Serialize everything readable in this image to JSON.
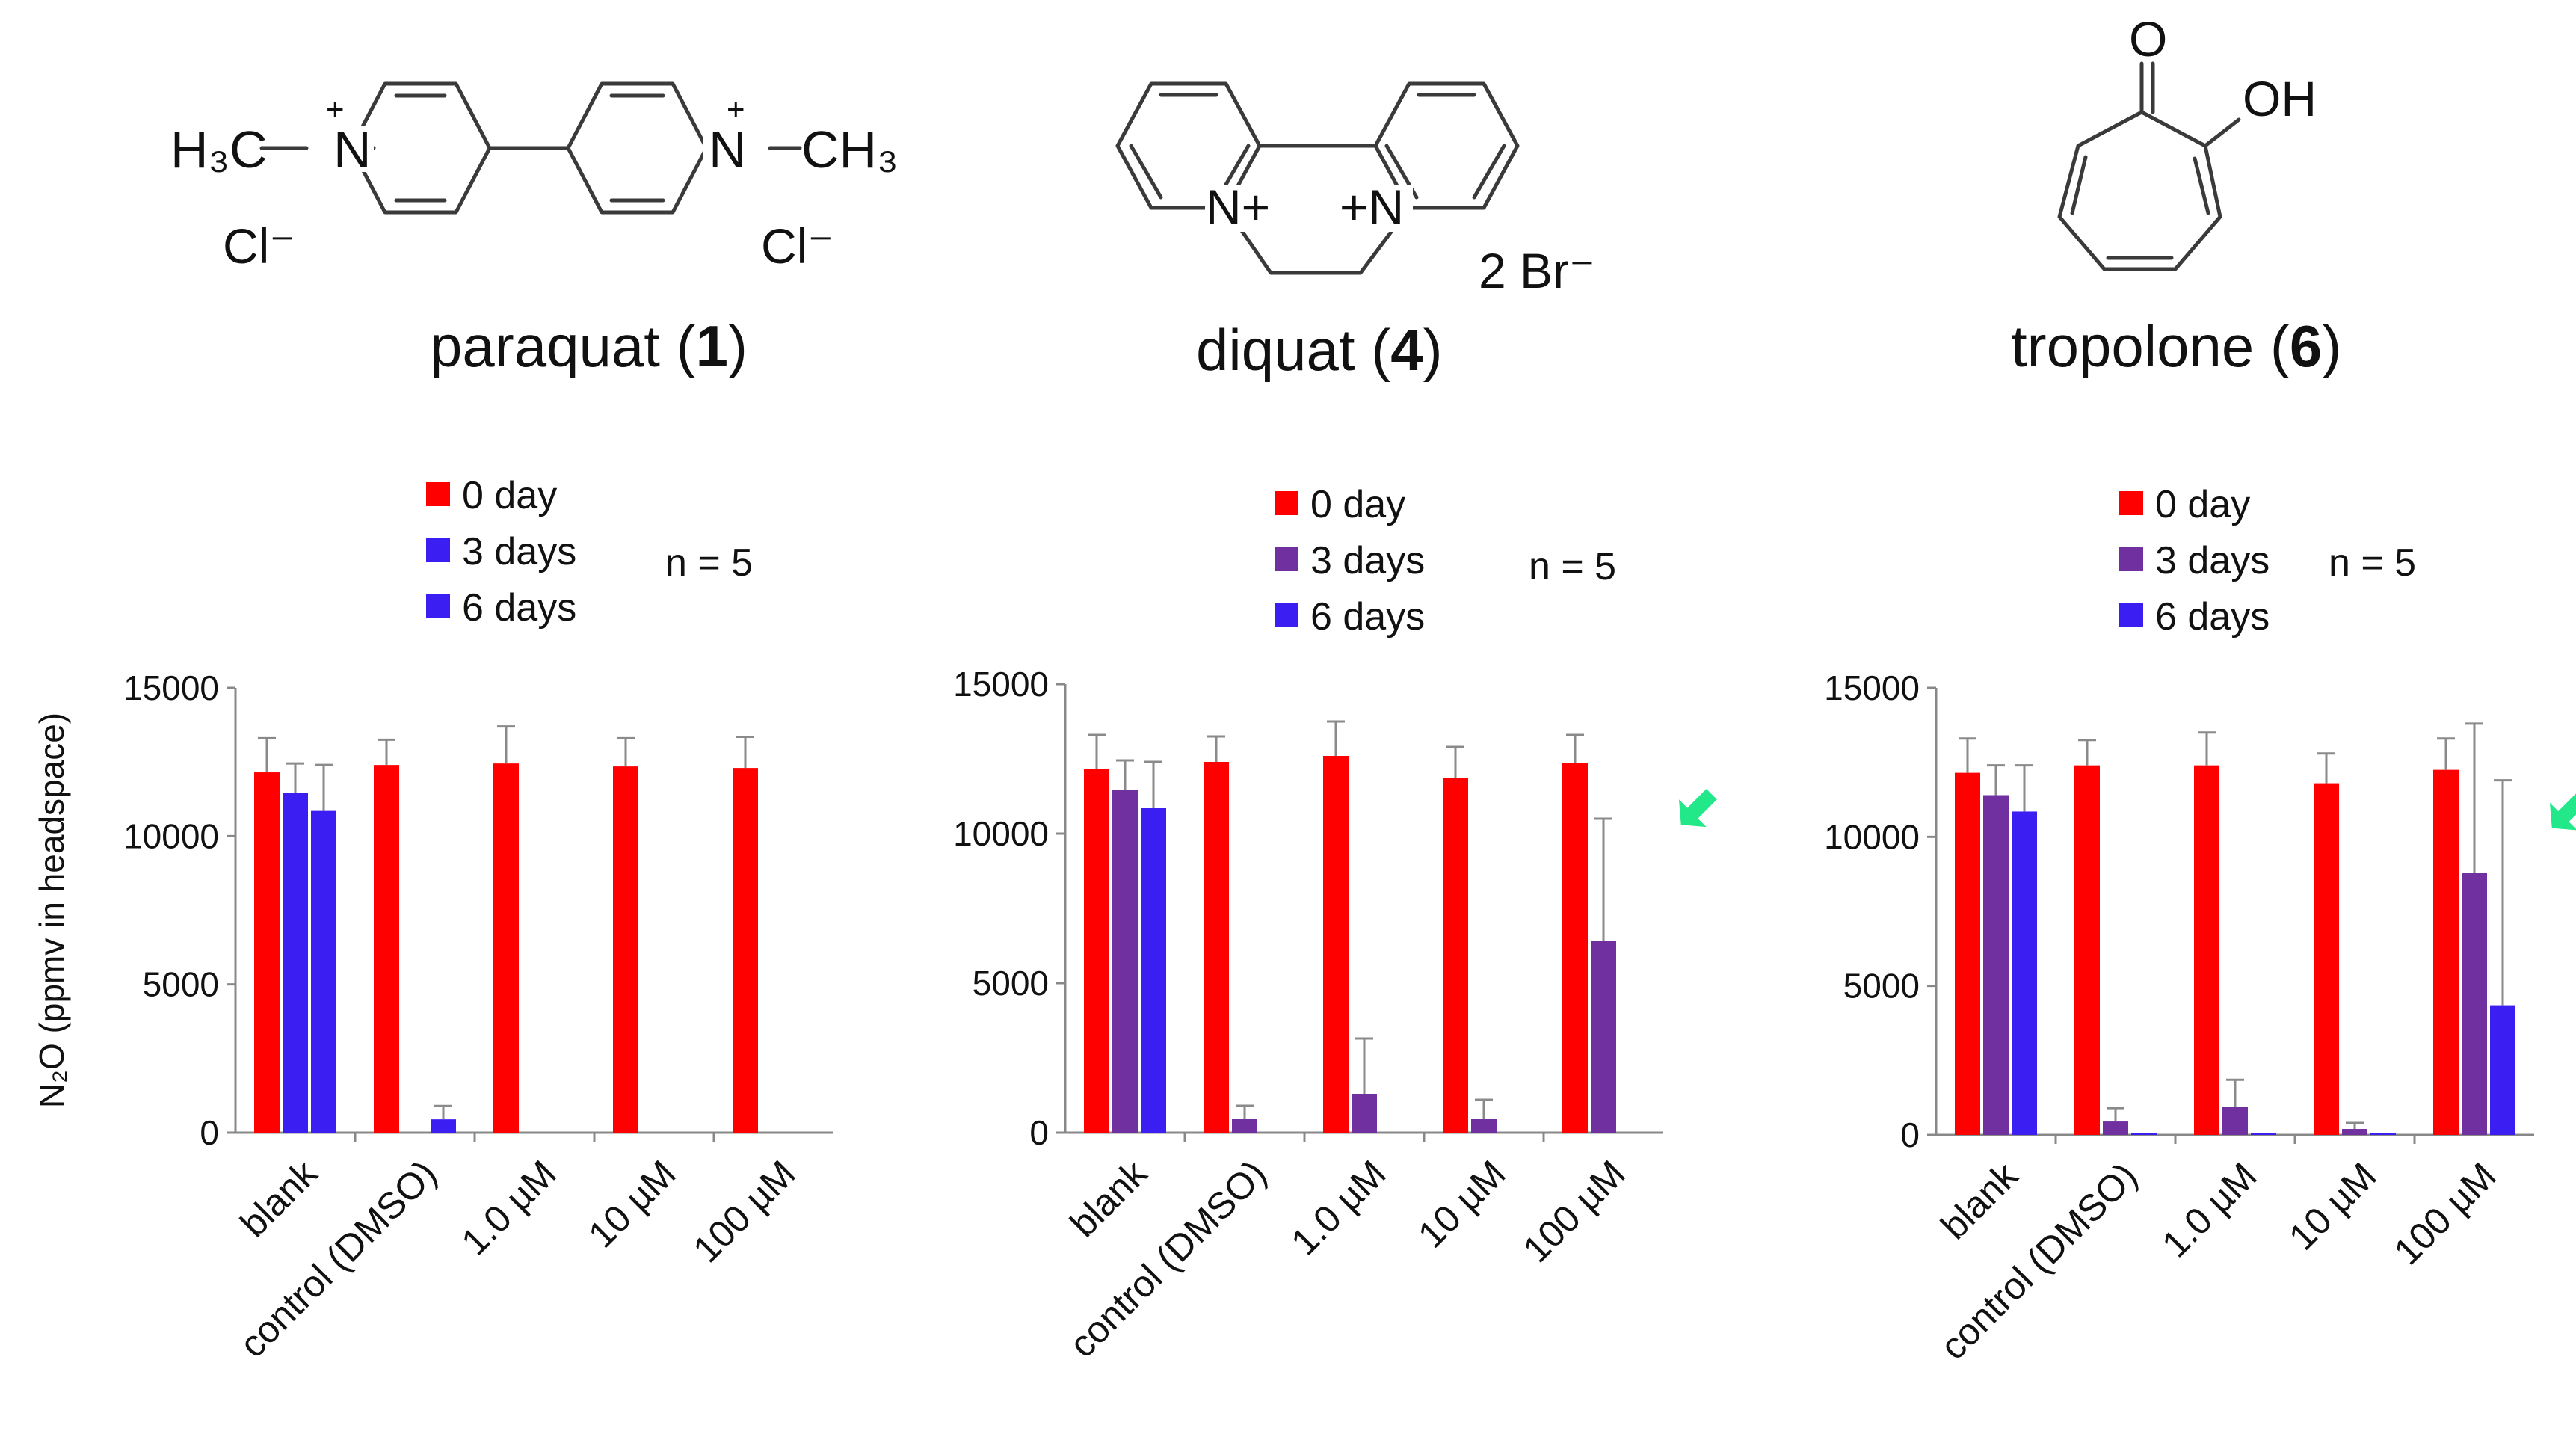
{
  "compounds": [
    {
      "name": "paraquat",
      "number": "1",
      "labels": {
        "left_methyl": "H₃C",
        "right_methyl": "CH₃",
        "n": "N",
        "plus": "+",
        "counter1": "Cl⁻",
        "counter2": "Cl⁻"
      }
    },
    {
      "name": "diquat",
      "number": "4",
      "labels": {
        "n_left": "N+",
        "n_right": "+N",
        "counter": "2 Br⁻"
      }
    },
    {
      "name": "tropolone",
      "number": "6",
      "labels": {
        "carbonyl_o": "O",
        "hydroxyl": "OH"
      }
    }
  ],
  "chart_data": [
    {
      "type": "bar",
      "title": "paraquat (1)",
      "ylabel": "N₂O (ppmv in headspace)",
      "ylim": [
        0,
        15000
      ],
      "yticks": [
        "0",
        "5000",
        "10000",
        "15000"
      ],
      "categories": [
        "blank",
        "control (DMSO)",
        "1.0 µM",
        "10 µM",
        "100 µM"
      ],
      "n_label": "n = 5",
      "legend": [
        "0 day",
        "3 days",
        "6 days"
      ],
      "series": [
        {
          "name": "0 day",
          "color": "#ff0000",
          "values": [
            12150,
            12400,
            12450,
            12350,
            12300
          ],
          "errors": [
            1150,
            850,
            1250,
            950,
            1050
          ]
        },
        {
          "name": "3 days",
          "color": "#3b1ff2",
          "values": [
            11450,
            0,
            0,
            0,
            0
          ],
          "errors": [
            1000,
            0,
            0,
            0,
            0
          ]
        },
        {
          "name": "6 days",
          "color": "#3b1ff2",
          "values": [
            10850,
            450,
            0,
            0,
            0
          ],
          "errors": [
            1550,
            450,
            0,
            0,
            0
          ]
        }
      ],
      "arrow_category": null
    },
    {
      "type": "bar",
      "title": "diquat (4)",
      "ylim": [
        0,
        15000
      ],
      "yticks": [
        "0",
        "5000",
        "10000",
        "15000"
      ],
      "categories": [
        "blank",
        "control (DMSO)",
        "1.0 µM",
        "10 µM",
        "100 µM"
      ],
      "n_label": "n = 5",
      "legend": [
        "0 day",
        "3 days",
        "6 days"
      ],
      "series": [
        {
          "name": "0 day",
          "color": "#ff0000",
          "values": [
            12150,
            12400,
            12600,
            11850,
            12350
          ],
          "errors": [
            1150,
            850,
            1150,
            1050,
            950
          ]
        },
        {
          "name": "3 days",
          "color": "#7030a0",
          "values": [
            11450,
            450,
            1300,
            450,
            6400
          ],
          "errors": [
            1000,
            450,
            1850,
            650,
            4100
          ]
        },
        {
          "name": "6 days",
          "color": "#3b1ff2",
          "values": [
            10850,
            0,
            0,
            0,
            0
          ],
          "errors": [
            1550,
            0,
            0,
            0,
            0
          ]
        }
      ],
      "arrow_category": "100 µM"
    },
    {
      "type": "bar",
      "title": "tropolone (6)",
      "ylim": [
        0,
        15000
      ],
      "yticks": [
        "0",
        "5000",
        "10000",
        "15000"
      ],
      "categories": [
        "blank",
        "control (DMSO)",
        "1.0 µM",
        "10 µM",
        "100 µM"
      ],
      "n_label": "n = 5",
      "legend": [
        "0 day",
        "3 days",
        "6 days"
      ],
      "series": [
        {
          "name": "0 day",
          "color": "#ff0000",
          "values": [
            12150,
            12400,
            12400,
            11800,
            12250
          ],
          "errors": [
            1150,
            850,
            1100,
            1000,
            1050
          ]
        },
        {
          "name": "3 days",
          "color": "#7030a0",
          "values": [
            11400,
            450,
            950,
            200,
            8800
          ],
          "errors": [
            1000,
            450,
            900,
            200,
            5000
          ]
        },
        {
          "name": "6 days",
          "color": "#3b1ff2",
          "values": [
            10850,
            50,
            50,
            50,
            4350
          ],
          "errors": [
            1550,
            0,
            0,
            0,
            7550
          ]
        }
      ],
      "arrow_category": "100 µM"
    }
  ]
}
